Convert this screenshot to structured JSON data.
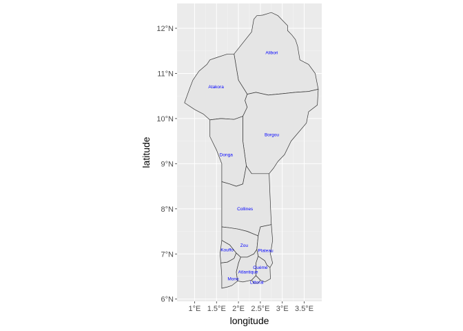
{
  "chart_data": {
    "type": "map",
    "title": "",
    "xlabel": "longitude",
    "ylabel": "latitude",
    "xlim": [
      0.6,
      3.9
    ],
    "ylim": [
      5.95,
      12.55
    ],
    "x_ticks": [
      {
        "value": 1.0,
        "label": "1°E"
      },
      {
        "value": 1.5,
        "label": "1.5°E"
      },
      {
        "value": 2.0,
        "label": "2°E"
      },
      {
        "value": 2.5,
        "label": "2.5°E"
      },
      {
        "value": 3.0,
        "label": "3°E"
      },
      {
        "value": 3.5,
        "label": "3.5°E"
      }
    ],
    "y_ticks": [
      {
        "value": 6,
        "label": "6°N"
      },
      {
        "value": 7,
        "label": "7°N"
      },
      {
        "value": 8,
        "label": "8°N"
      },
      {
        "value": 9,
        "label": "9°N"
      },
      {
        "value": 10,
        "label": "10°N"
      },
      {
        "value": 11,
        "label": "11°N"
      },
      {
        "value": 12,
        "label": "12°N"
      }
    ],
    "colors": {
      "panel_background": "#ebebeb",
      "region_fill": "#e5e5e5",
      "region_border": "#333333",
      "label_color": "#0000ff",
      "grid": "#ffffff"
    },
    "regions": [
      {
        "name": "Alibori",
        "label_lon": 2.76,
        "label_lat": 11.46,
        "boundary": [
          [
            1.9,
            11.43
          ],
          [
            2.3,
            11.92
          ],
          [
            2.35,
            12.2
          ],
          [
            2.42,
            12.28
          ],
          [
            2.55,
            12.29
          ],
          [
            2.75,
            12.35
          ],
          [
            2.9,
            12.28
          ],
          [
            2.96,
            12.22
          ],
          [
            3.12,
            12.06
          ],
          [
            3.12,
            11.95
          ],
          [
            3.22,
            11.85
          ],
          [
            3.3,
            11.75
          ],
          [
            3.35,
            11.6
          ],
          [
            3.4,
            11.3
          ],
          [
            3.6,
            11.2
          ],
          [
            3.75,
            11.0
          ],
          [
            3.82,
            10.65
          ],
          [
            3.6,
            10.6
          ],
          [
            3.3,
            10.58
          ],
          [
            3.0,
            10.55
          ],
          [
            2.68,
            10.52
          ],
          [
            2.4,
            10.58
          ],
          [
            2.2,
            10.54
          ],
          [
            2.15,
            10.62
          ],
          [
            2.0,
            10.85
          ],
          [
            1.9,
            11.43
          ]
        ]
      },
      {
        "name": "Atakora",
        "label_lon": 1.49,
        "label_lat": 10.7,
        "boundary": [
          [
            0.77,
            10.35
          ],
          [
            0.9,
            10.7
          ],
          [
            0.96,
            10.85
          ],
          [
            1.1,
            11.05
          ],
          [
            1.28,
            11.2
          ],
          [
            1.35,
            11.3
          ],
          [
            1.5,
            11.35
          ],
          [
            1.75,
            11.43
          ],
          [
            1.9,
            11.43
          ],
          [
            2.0,
            10.85
          ],
          [
            2.15,
            10.62
          ],
          [
            2.2,
            10.54
          ],
          [
            2.15,
            10.4
          ],
          [
            2.2,
            10.25
          ],
          [
            2.1,
            10.05
          ],
          [
            1.9,
            9.98
          ],
          [
            1.6,
            10.0
          ],
          [
            1.35,
            9.97
          ],
          [
            1.2,
            10.1
          ],
          [
            1.0,
            10.2
          ],
          [
            0.77,
            10.35
          ]
        ]
      },
      {
        "name": "Borgou",
        "label_lon": 2.76,
        "label_lat": 9.64,
        "boundary": [
          [
            2.2,
            10.54
          ],
          [
            2.4,
            10.58
          ],
          [
            2.68,
            10.52
          ],
          [
            3.0,
            10.55
          ],
          [
            3.3,
            10.58
          ],
          [
            3.6,
            10.6
          ],
          [
            3.82,
            10.65
          ],
          [
            3.8,
            10.3
          ],
          [
            3.6,
            10.15
          ],
          [
            3.55,
            9.9
          ],
          [
            3.2,
            9.5
          ],
          [
            3.05,
            9.2
          ],
          [
            2.9,
            9.05
          ],
          [
            2.8,
            8.9
          ],
          [
            2.7,
            8.78
          ],
          [
            2.3,
            8.78
          ],
          [
            2.18,
            8.95
          ],
          [
            2.1,
            9.5
          ],
          [
            2.1,
            9.9
          ],
          [
            2.1,
            10.05
          ],
          [
            2.2,
            10.25
          ],
          [
            2.15,
            10.4
          ],
          [
            2.2,
            10.54
          ]
        ]
      },
      {
        "name": "Donga",
        "label_lon": 1.72,
        "label_lat": 9.2,
        "boundary": [
          [
            1.35,
            9.97
          ],
          [
            1.6,
            10.0
          ],
          [
            1.9,
            9.98
          ],
          [
            2.1,
            10.05
          ],
          [
            2.1,
            9.9
          ],
          [
            2.1,
            9.5
          ],
          [
            2.18,
            8.95
          ],
          [
            2.1,
            8.55
          ],
          [
            1.95,
            8.5
          ],
          [
            1.8,
            8.55
          ],
          [
            1.62,
            8.6
          ],
          [
            1.62,
            9.0
          ],
          [
            1.5,
            9.3
          ],
          [
            1.35,
            9.6
          ],
          [
            1.35,
            9.97
          ]
        ]
      },
      {
        "name": "Collines",
        "label_lon": 2.15,
        "label_lat": 8.0,
        "boundary": [
          [
            1.62,
            8.6
          ],
          [
            1.8,
            8.55
          ],
          [
            1.95,
            8.5
          ],
          [
            2.1,
            8.55
          ],
          [
            2.18,
            8.95
          ],
          [
            2.3,
            8.78
          ],
          [
            2.7,
            8.78
          ],
          [
            2.72,
            8.3
          ],
          [
            2.75,
            7.65
          ],
          [
            2.5,
            7.6
          ],
          [
            2.45,
            7.4
          ],
          [
            2.2,
            7.5
          ],
          [
            2.0,
            7.55
          ],
          [
            1.8,
            7.58
          ],
          [
            1.62,
            7.6
          ],
          [
            1.62,
            8.0
          ],
          [
            1.62,
            8.6
          ]
        ]
      },
      {
        "name": "Zou",
        "label_lon": 2.13,
        "label_lat": 7.19,
        "boundary": [
          [
            1.62,
            7.6
          ],
          [
            1.8,
            7.58
          ],
          [
            2.0,
            7.55
          ],
          [
            2.2,
            7.5
          ],
          [
            2.45,
            7.4
          ],
          [
            2.42,
            7.1
          ],
          [
            2.35,
            7.0
          ],
          [
            2.2,
            6.93
          ],
          [
            2.05,
            6.93
          ],
          [
            1.95,
            7.02
          ],
          [
            1.8,
            7.2
          ],
          [
            1.62,
            7.3
          ],
          [
            1.62,
            7.6
          ]
        ]
      },
      {
        "name": "Kouffo",
        "label_lon": 1.74,
        "label_lat": 7.09,
        "boundary": [
          [
            1.62,
            7.3
          ],
          [
            1.8,
            7.2
          ],
          [
            1.95,
            7.02
          ],
          [
            1.9,
            6.9
          ],
          [
            1.75,
            6.82
          ],
          [
            1.6,
            6.8
          ],
          [
            1.58,
            7.0
          ],
          [
            1.62,
            7.3
          ]
        ]
      },
      {
        "name": "Plateau",
        "label_lon": 2.62,
        "label_lat": 7.07,
        "boundary": [
          [
            2.5,
            7.6
          ],
          [
            2.75,
            7.65
          ],
          [
            2.78,
            7.3
          ],
          [
            2.73,
            7.0
          ],
          [
            2.78,
            6.8
          ],
          [
            2.72,
            6.7
          ],
          [
            2.65,
            6.75
          ],
          [
            2.6,
            6.85
          ],
          [
            2.45,
            6.95
          ],
          [
            2.42,
            7.1
          ],
          [
            2.45,
            7.4
          ],
          [
            2.5,
            7.6
          ]
        ]
      },
      {
        "name": "Ouémé",
        "label_lon": 2.5,
        "label_lat": 6.7,
        "boundary": [
          [
            2.45,
            6.95
          ],
          [
            2.6,
            6.85
          ],
          [
            2.65,
            6.75
          ],
          [
            2.72,
            6.7
          ],
          [
            2.73,
            6.45
          ],
          [
            2.6,
            6.38
          ],
          [
            2.5,
            6.42
          ],
          [
            2.4,
            6.52
          ],
          [
            2.4,
            6.8
          ],
          [
            2.45,
            6.95
          ]
        ]
      },
      {
        "name": "Atlantique",
        "label_lon": 2.22,
        "label_lat": 6.6,
        "boundary": [
          [
            2.05,
            6.93
          ],
          [
            2.2,
            6.93
          ],
          [
            2.35,
            7.0
          ],
          [
            2.42,
            7.1
          ],
          [
            2.45,
            6.95
          ],
          [
            2.4,
            6.8
          ],
          [
            2.4,
            6.52
          ],
          [
            2.3,
            6.42
          ],
          [
            2.1,
            6.38
          ],
          [
            1.98,
            6.4
          ],
          [
            1.95,
            6.6
          ],
          [
            2.0,
            6.8
          ],
          [
            2.05,
            6.93
          ]
        ]
      },
      {
        "name": "Mono",
        "label_lon": 1.88,
        "label_lat": 6.45,
        "boundary": [
          [
            1.6,
            6.8
          ],
          [
            1.75,
            6.82
          ],
          [
            1.9,
            6.9
          ],
          [
            1.95,
            7.02
          ],
          [
            2.05,
            6.93
          ],
          [
            2.0,
            6.8
          ],
          [
            1.95,
            6.6
          ],
          [
            1.98,
            6.4
          ],
          [
            1.85,
            6.3
          ],
          [
            1.75,
            6.27
          ],
          [
            1.62,
            6.24
          ],
          [
            1.62,
            6.5
          ],
          [
            1.6,
            6.8
          ]
        ]
      },
      {
        "name": "Littoral",
        "label_lon": 2.42,
        "label_lat": 6.37,
        "boundary": [
          [
            2.3,
            6.42
          ],
          [
            2.4,
            6.52
          ],
          [
            2.5,
            6.42
          ],
          [
            2.45,
            6.35
          ],
          [
            2.35,
            6.35
          ],
          [
            2.3,
            6.42
          ]
        ]
      }
    ]
  }
}
